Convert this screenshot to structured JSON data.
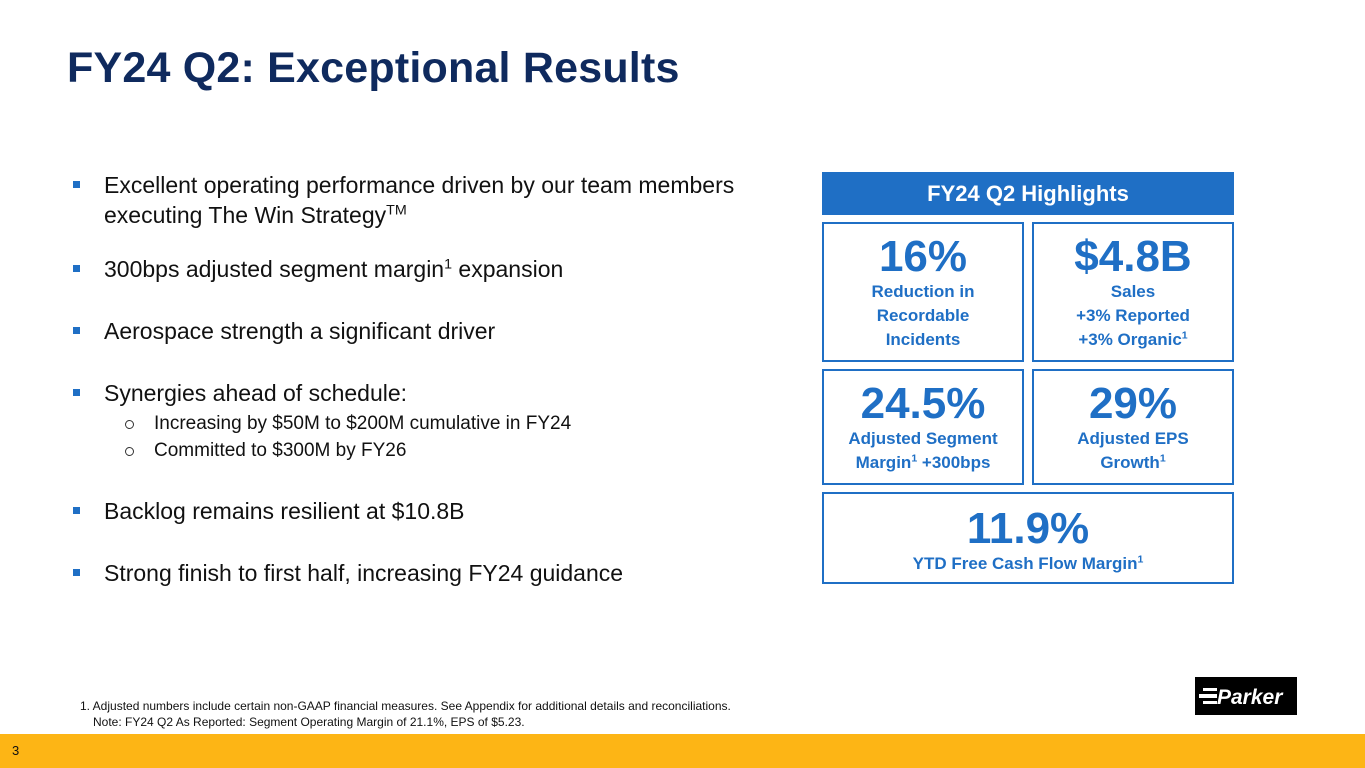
{
  "title": "FY24 Q2: Exceptional Results",
  "bullets": [
    {
      "text": "Excellent operating performance driven by our team members executing The Win Strategy",
      "sup": "TM"
    },
    {
      "pre": "300bps adjusted segment margin",
      "sup": "1",
      "post": " expansion"
    },
    {
      "text": "Aerospace strength a significant driver"
    },
    {
      "text": "Synergies ahead of schedule:",
      "subs": [
        "Increasing by $50M to $200M cumulative in FY24",
        "Committed to $300M by FY26"
      ]
    },
    {
      "text": "Backlog remains resilient at $10.8B"
    },
    {
      "text": "Strong finish to first half, increasing FY24 guidance"
    }
  ],
  "highlights": {
    "header": "FY24 Q2 Highlights",
    "tiles": [
      {
        "value": "16%",
        "lines": [
          "Reduction in",
          "Recordable",
          "Incidents"
        ]
      },
      {
        "value": "$4.8B",
        "line1": "Sales",
        "line2": "+3% Reported",
        "line3": "+3% Organic",
        "line3_sup": "1"
      },
      {
        "value": "24.5%",
        "line1": "Adjusted Segment",
        "line2_pre": "Margin",
        "line2_sup": "1",
        "line2_post": " +300bps"
      },
      {
        "value": "29%",
        "line1": "Adjusted EPS",
        "line2": "Growth",
        "line2_sup": "1"
      },
      {
        "value": "11.9%",
        "line1": "YTD Free Cash Flow Margin",
        "line1_sup": "1"
      }
    ]
  },
  "footnote": {
    "line1": "1. Adjusted numbers include certain non-GAAP financial measures. See Appendix for additional details and reconciliations.",
    "line2": "Note: FY24 Q2 As Reported: Segment Operating Margin of 21.1%, EPS of $5.23."
  },
  "logo": {
    "name": "parker-logo",
    "text": "Parker"
  },
  "page_number": "3",
  "colors": {
    "title": "#0f2a5e",
    "accent": "#1f6fc5",
    "bar": "#fdb515"
  }
}
